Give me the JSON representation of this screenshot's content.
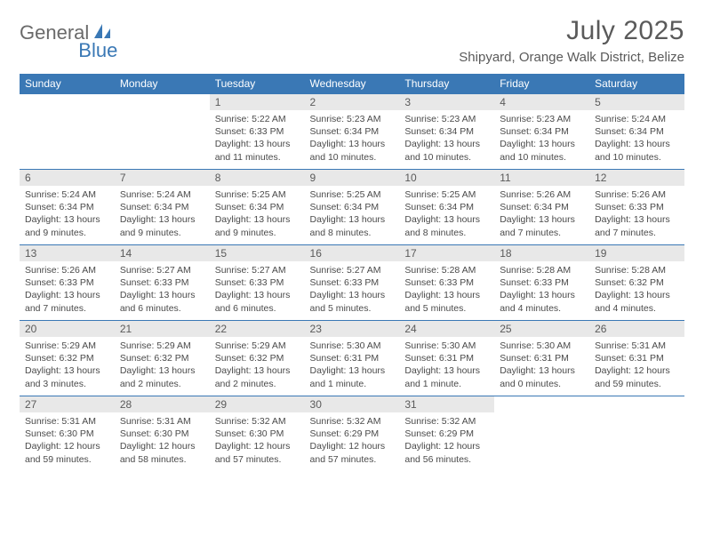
{
  "logo": {
    "text1": "General",
    "text2": "Blue"
  },
  "title": "July 2025",
  "location": "Shipyard, Orange Walk District, Belize",
  "colors": {
    "header_bg": "#3a78b5",
    "header_text": "#ffffff",
    "daynum_bg": "#e8e8e8",
    "text_body": "#4a4a4a",
    "text_title": "#5a5a5a",
    "border": "#3a78b5",
    "page_bg": "#ffffff"
  },
  "day_headers": [
    "Sunday",
    "Monday",
    "Tuesday",
    "Wednesday",
    "Thursday",
    "Friday",
    "Saturday"
  ],
  "weeks": [
    [
      null,
      null,
      {
        "n": "1",
        "sr": "5:22 AM",
        "ss": "6:33 PM",
        "dl": "13 hours and 11 minutes."
      },
      {
        "n": "2",
        "sr": "5:23 AM",
        "ss": "6:34 PM",
        "dl": "13 hours and 10 minutes."
      },
      {
        "n": "3",
        "sr": "5:23 AM",
        "ss": "6:34 PM",
        "dl": "13 hours and 10 minutes."
      },
      {
        "n": "4",
        "sr": "5:23 AM",
        "ss": "6:34 PM",
        "dl": "13 hours and 10 minutes."
      },
      {
        "n": "5",
        "sr": "5:24 AM",
        "ss": "6:34 PM",
        "dl": "13 hours and 10 minutes."
      }
    ],
    [
      {
        "n": "6",
        "sr": "5:24 AM",
        "ss": "6:34 PM",
        "dl": "13 hours and 9 minutes."
      },
      {
        "n": "7",
        "sr": "5:24 AM",
        "ss": "6:34 PM",
        "dl": "13 hours and 9 minutes."
      },
      {
        "n": "8",
        "sr": "5:25 AM",
        "ss": "6:34 PM",
        "dl": "13 hours and 9 minutes."
      },
      {
        "n": "9",
        "sr": "5:25 AM",
        "ss": "6:34 PM",
        "dl": "13 hours and 8 minutes."
      },
      {
        "n": "10",
        "sr": "5:25 AM",
        "ss": "6:34 PM",
        "dl": "13 hours and 8 minutes."
      },
      {
        "n": "11",
        "sr": "5:26 AM",
        "ss": "6:34 PM",
        "dl": "13 hours and 7 minutes."
      },
      {
        "n": "12",
        "sr": "5:26 AM",
        "ss": "6:33 PM",
        "dl": "13 hours and 7 minutes."
      }
    ],
    [
      {
        "n": "13",
        "sr": "5:26 AM",
        "ss": "6:33 PM",
        "dl": "13 hours and 7 minutes."
      },
      {
        "n": "14",
        "sr": "5:27 AM",
        "ss": "6:33 PM",
        "dl": "13 hours and 6 minutes."
      },
      {
        "n": "15",
        "sr": "5:27 AM",
        "ss": "6:33 PM",
        "dl": "13 hours and 6 minutes."
      },
      {
        "n": "16",
        "sr": "5:27 AM",
        "ss": "6:33 PM",
        "dl": "13 hours and 5 minutes."
      },
      {
        "n": "17",
        "sr": "5:28 AM",
        "ss": "6:33 PM",
        "dl": "13 hours and 5 minutes."
      },
      {
        "n": "18",
        "sr": "5:28 AM",
        "ss": "6:33 PM",
        "dl": "13 hours and 4 minutes."
      },
      {
        "n": "19",
        "sr": "5:28 AM",
        "ss": "6:32 PM",
        "dl": "13 hours and 4 minutes."
      }
    ],
    [
      {
        "n": "20",
        "sr": "5:29 AM",
        "ss": "6:32 PM",
        "dl": "13 hours and 3 minutes."
      },
      {
        "n": "21",
        "sr": "5:29 AM",
        "ss": "6:32 PM",
        "dl": "13 hours and 2 minutes."
      },
      {
        "n": "22",
        "sr": "5:29 AM",
        "ss": "6:32 PM",
        "dl": "13 hours and 2 minutes."
      },
      {
        "n": "23",
        "sr": "5:30 AM",
        "ss": "6:31 PM",
        "dl": "13 hours and 1 minute."
      },
      {
        "n": "24",
        "sr": "5:30 AM",
        "ss": "6:31 PM",
        "dl": "13 hours and 1 minute."
      },
      {
        "n": "25",
        "sr": "5:30 AM",
        "ss": "6:31 PM",
        "dl": "13 hours and 0 minutes."
      },
      {
        "n": "26",
        "sr": "5:31 AM",
        "ss": "6:31 PM",
        "dl": "12 hours and 59 minutes."
      }
    ],
    [
      {
        "n": "27",
        "sr": "5:31 AM",
        "ss": "6:30 PM",
        "dl": "12 hours and 59 minutes."
      },
      {
        "n": "28",
        "sr": "5:31 AM",
        "ss": "6:30 PM",
        "dl": "12 hours and 58 minutes."
      },
      {
        "n": "29",
        "sr": "5:32 AM",
        "ss": "6:30 PM",
        "dl": "12 hours and 57 minutes."
      },
      {
        "n": "30",
        "sr": "5:32 AM",
        "ss": "6:29 PM",
        "dl": "12 hours and 57 minutes."
      },
      {
        "n": "31",
        "sr": "5:32 AM",
        "ss": "6:29 PM",
        "dl": "12 hours and 56 minutes."
      },
      null,
      null
    ]
  ],
  "labels": {
    "sunrise": "Sunrise:",
    "sunset": "Sunset:",
    "daylight": "Daylight:"
  }
}
